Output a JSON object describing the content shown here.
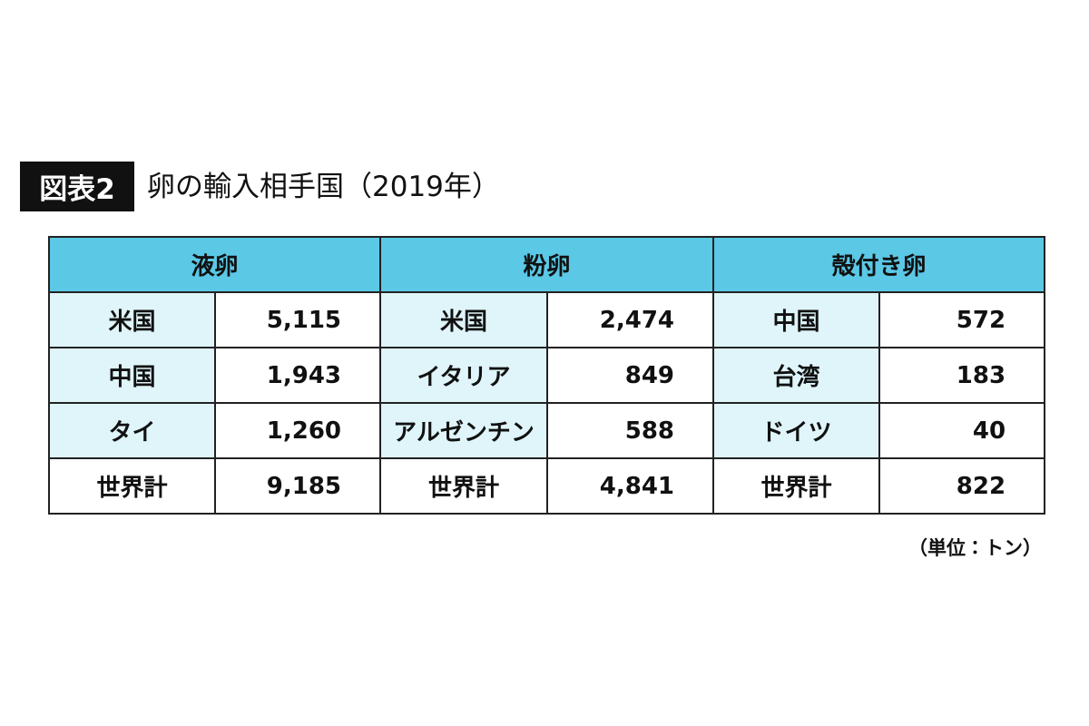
{
  "header": {
    "badge": "図表2",
    "title": "卵の輸入相手国（2019年）"
  },
  "table": {
    "groups": [
      {
        "name": "液卵",
        "rows": [
          [
            "米国",
            "5,115"
          ],
          [
            "中国",
            "1,943"
          ],
          [
            "タイ",
            "1,260"
          ],
          [
            "世界計",
            "9,185"
          ]
        ]
      },
      {
        "name": "粉卵",
        "rows": [
          [
            "米国",
            "2,474"
          ],
          [
            "イタリア",
            "849"
          ],
          [
            "アルゼンチン",
            "588"
          ],
          [
            "世界計",
            "4,841"
          ]
        ]
      },
      {
        "name": "殻付き卵",
        "rows": [
          [
            "中国",
            "572"
          ],
          [
            "台湾",
            "183"
          ],
          [
            "ドイツ",
            "40"
          ],
          [
            "世界計",
            "822"
          ]
        ]
      }
    ]
  },
  "note": "（単位：トン）"
}
